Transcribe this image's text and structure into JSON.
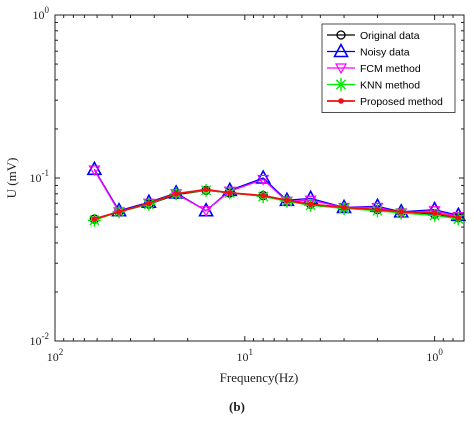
{
  "caption": "(b)",
  "chart_data": {
    "type": "line",
    "xlabel": "Frequency(Hz)",
    "ylabel": "U (mV)",
    "x_scale": "log",
    "x_reversed": true,
    "xlim": [
      100,
      0.7
    ],
    "y_scale": "log",
    "ylim": [
      0.01,
      1
    ],
    "grid": false,
    "legend_position": "top-right",
    "x_ticks": [
      {
        "value": 100,
        "base": "10",
        "exp": "2"
      },
      {
        "value": 10,
        "base": "10",
        "exp": "1"
      },
      {
        "value": 1,
        "base": "10",
        "exp": "0"
      }
    ],
    "y_ticks": [
      {
        "value": 1,
        "base": "10",
        "exp": "0"
      },
      {
        "value": 0.1,
        "base": "10",
        "exp": "-1"
      },
      {
        "value": 0.01,
        "base": "10",
        "exp": "-2"
      }
    ],
    "x": [
      62,
      46,
      32,
      23,
      16,
      12,
      8,
      6,
      4.5,
      3,
      2,
      1.5,
      1,
      0.75
    ],
    "series": [
      {
        "name": "Original data",
        "color": "#000000",
        "marker": "circle",
        "values": [
          0.056,
          0.062,
          0.069,
          0.079,
          0.084,
          0.081,
          0.078,
          0.073,
          0.069,
          0.066,
          0.064,
          0.062,
          0.06,
          0.057
        ]
      },
      {
        "name": "Noisy data",
        "color": "#0000ff",
        "marker": "triangle-up",
        "values": [
          0.113,
          0.063,
          0.071,
          0.081,
          0.063,
          0.084,
          0.1,
          0.073,
          0.075,
          0.066,
          0.067,
          0.062,
          0.064,
          0.059
        ]
      },
      {
        "name": "FCM method",
        "color": "#ff00ff",
        "marker": "triangle-down",
        "values": [
          0.112,
          0.062,
          0.07,
          0.08,
          0.063,
          0.083,
          0.098,
          0.072,
          0.073,
          0.066,
          0.066,
          0.061,
          0.063,
          0.058
        ]
      },
      {
        "name": "KNN method",
        "color": "#00ee00",
        "marker": "asterisk",
        "values": [
          0.055,
          0.062,
          0.069,
          0.08,
          0.084,
          0.081,
          0.077,
          0.072,
          0.068,
          0.065,
          0.063,
          0.061,
          0.059,
          0.056
        ]
      },
      {
        "name": "Proposed method",
        "color": "#ee1111",
        "marker": "dot",
        "values": [
          0.056,
          0.062,
          0.07,
          0.08,
          0.085,
          0.081,
          0.078,
          0.073,
          0.069,
          0.066,
          0.064,
          0.062,
          0.061,
          0.057
        ]
      }
    ]
  }
}
